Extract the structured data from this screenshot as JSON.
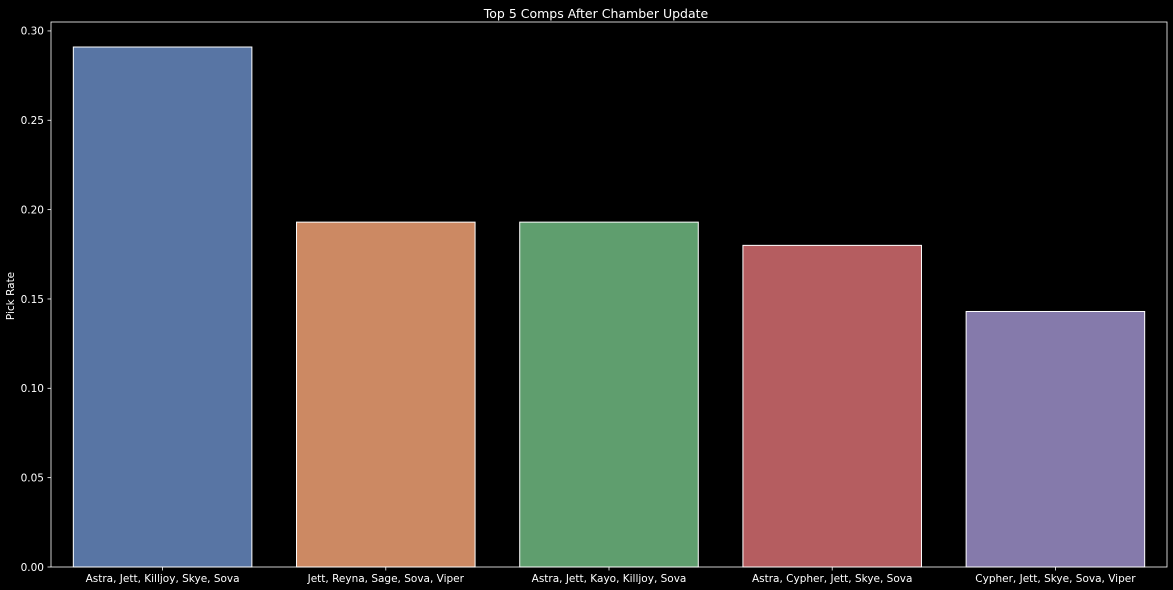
{
  "chart_data": {
    "type": "bar",
    "title": "Top 5 Comps After Chamber Update",
    "xlabel": "",
    "ylabel": "Pick Rate",
    "categories": [
      "Astra, Jett, Killjoy, Skye, Sova",
      "Jett, Reyna, Sage, Sova, Viper",
      "Astra, Jett, Kayo, Killjoy, Sova",
      "Astra, Cypher, Jett, Skye, Sova",
      "Cypher, Jett, Skye, Sova, Viper"
    ],
    "values": [
      0.291,
      0.193,
      0.193,
      0.18,
      0.143
    ],
    "colors": [
      "#5875a4",
      "#cc8963",
      "#5f9e6e",
      "#b55d60",
      "#857aab"
    ],
    "ylim": [
      0,
      0.305
    ],
    "yticks": [
      "0.00",
      "0.05",
      "0.10",
      "0.15",
      "0.20",
      "0.25",
      "0.30"
    ],
    "grid": false,
    "background": "#000000",
    "foreground": "#ffffff"
  }
}
